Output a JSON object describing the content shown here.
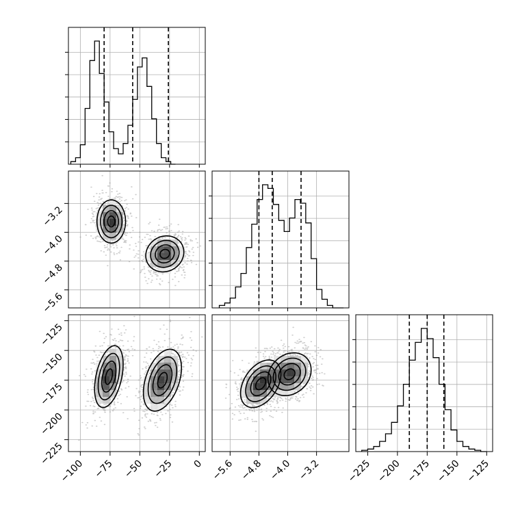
{
  "chart_data": {
    "type": "corner",
    "grid": true,
    "parameters": [
      {
        "range": [
          -110,
          5
        ],
        "ticks": [
          -100,
          -75,
          -50,
          -25,
          0
        ],
        "tick_labels": [
          "−100",
          "−75",
          "−50",
          "−25",
          "0"
        ],
        "quantiles": [
          -80,
          -56,
          -26
        ],
        "hist_bins": [
          -108,
          -104,
          -100,
          -96,
          -92,
          -88,
          -84,
          -80,
          -76,
          -72,
          -68,
          -64,
          -60,
          -56,
          -52,
          -48,
          -44,
          -40,
          -36,
          -32,
          -28,
          -24,
          -20,
          -16,
          -12,
          -8,
          -4,
          0,
          4
        ],
        "hist_counts": [
          0.02,
          0.05,
          0.15,
          0.43,
          0.8,
          0.95,
          0.7,
          0.48,
          0.25,
          0.12,
          0.08,
          0.16,
          0.3,
          0.5,
          0.75,
          0.82,
          0.6,
          0.35,
          0.16,
          0.05,
          0.02,
          0.0
        ]
      },
      {
        "range": [
          -6.1,
          -2.3
        ],
        "ticks": [
          -5.6,
          -4.8,
          -4.0,
          -3.2
        ],
        "tick_labels": [
          "−5.6",
          "−4.8",
          "−4.0",
          "−3.2"
        ],
        "quantiles": [
          -4.8,
          -4.43,
          -3.63
        ],
        "hist_bins": [
          -5.9,
          -5.75,
          -5.6,
          -5.45,
          -5.3,
          -5.15,
          -5.0,
          -4.85,
          -4.7,
          -4.55,
          -4.4,
          -4.25,
          -4.1,
          -3.95,
          -3.8,
          -3.65,
          -3.5,
          -3.35,
          -3.2,
          -3.05,
          -2.9,
          -2.75,
          -2.6,
          -2.45
        ],
        "hist_counts": [
          0.02,
          0.04,
          0.08,
          0.17,
          0.28,
          0.49,
          0.68,
          0.88,
          1.0,
          0.97,
          0.84,
          0.71,
          0.62,
          0.73,
          0.88,
          0.85,
          0.69,
          0.4,
          0.15,
          0.07,
          0.02,
          0.0,
          0.0
        ]
      },
      {
        "range": [
          -235,
          -120
        ],
        "ticks": [
          -225,
          -200,
          -175,
          -150,
          -125
        ],
        "tick_labels": [
          "−225",
          "−200",
          "−175",
          "−150",
          "−125"
        ],
        "quantiles": [
          -190,
          -175,
          -161
        ],
        "hist_bins": [
          -230,
          -225,
          -220,
          -215,
          -210,
          -205,
          -200,
          -195,
          -190,
          -185,
          -180,
          -175,
          -170,
          -165,
          -160,
          -155,
          -150,
          -145,
          -140,
          -135,
          -130,
          -125
        ],
        "hist_counts": [
          0.01,
          0.02,
          0.04,
          0.08,
          0.14,
          0.23,
          0.36,
          0.53,
          0.72,
          0.86,
          0.97,
          0.89,
          0.74,
          0.53,
          0.33,
          0.17,
          0.08,
          0.04,
          0.02,
          0.01,
          0.0
        ]
      }
    ],
    "pairs": [
      {
        "row": 1,
        "col": 0,
        "modes": [
          {
            "cx": -74,
            "cy": -3.7,
            "sx": 6,
            "sy": 0.3,
            "rho": 0.0,
            "w": 1.0
          },
          {
            "cx": -29,
            "cy": -4.6,
            "sx": 8,
            "sy": 0.25,
            "rho": 0.1,
            "w": 0.95
          }
        ]
      },
      {
        "row": 2,
        "col": 0,
        "modes": [
          {
            "cx": -76,
            "cy": -172,
            "sx": 6,
            "sy": 13,
            "rho": 0.4,
            "w": 1.0
          },
          {
            "cx": -31,
            "cy": -175,
            "sx": 8,
            "sy": 13,
            "rho": 0.4,
            "w": 0.95
          }
        ]
      },
      {
        "row": 2,
        "col": 1,
        "modes": [
          {
            "cx": -4.75,
            "cy": -178,
            "sx": 0.28,
            "sy": 10,
            "rho": 0.4,
            "w": 1.0
          },
          {
            "cx": -3.95,
            "cy": -170,
            "sx": 0.3,
            "sy": 9,
            "rho": 0.2,
            "w": 0.95
          }
        ]
      }
    ]
  }
}
